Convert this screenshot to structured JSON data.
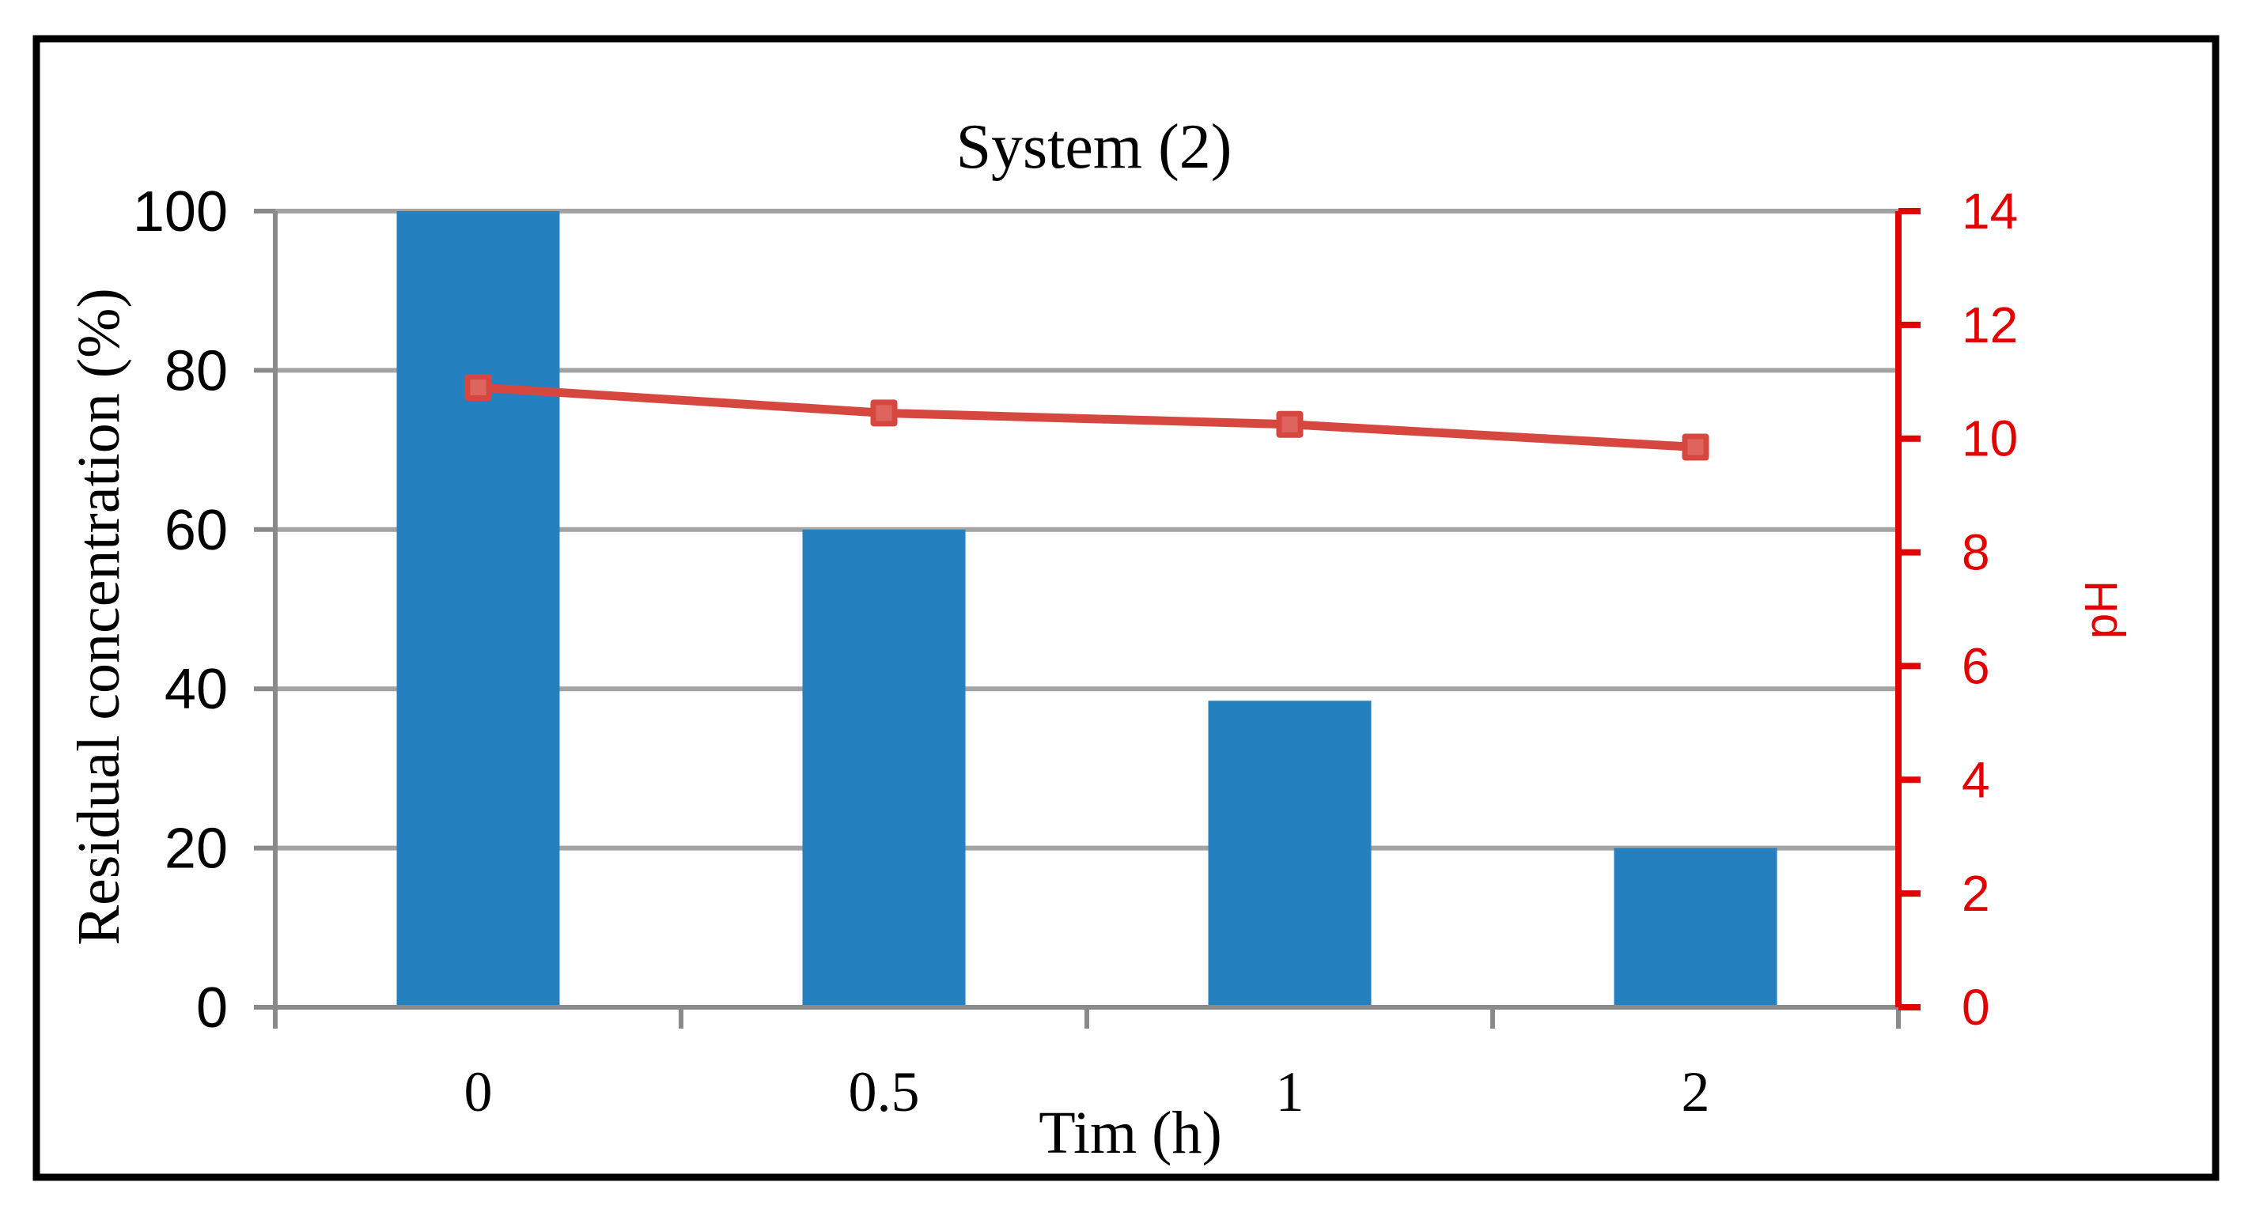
{
  "chart_data": {
    "type": "combo-bar-line",
    "title": "System (2)",
    "categories": [
      "0",
      "0.5",
      "1",
      "2"
    ],
    "series": [
      {
        "name": "Residual concentration",
        "type": "bar",
        "axis": "left",
        "values": [
          100,
          60,
          38.5,
          20
        ],
        "color": "#2580BF"
      },
      {
        "name": "pH",
        "type": "line",
        "axis": "right",
        "values": [
          10.9,
          10.45,
          10.25,
          9.85
        ],
        "color": "#D5473F",
        "marker": "square",
        "marker_inner_color": "#DE655D"
      }
    ],
    "x_axis": {
      "label": "Tim (h)",
      "color": "#8A8A8A"
    },
    "left_axis": {
      "label": "Residual concentration (%)",
      "min": 0,
      "max": 100,
      "ticks": [
        0,
        20,
        40,
        60,
        80,
        100
      ],
      "color": "#8A8A8A",
      "text_color": "#000000"
    },
    "right_axis": {
      "label": "pH",
      "min": 0,
      "max": 14,
      "ticks": [
        0,
        2,
        4,
        6,
        8,
        10,
        12,
        14
      ],
      "color": "#E30000",
      "text_color": "#E30000"
    },
    "grid": true,
    "gridline_color": "#A3A3A3",
    "legend": "none",
    "frame_color": "#000000"
  }
}
